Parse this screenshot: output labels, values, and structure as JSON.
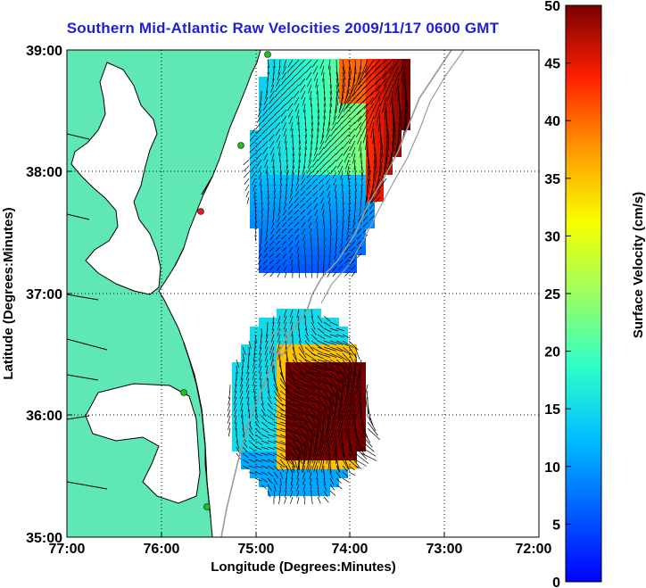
{
  "title": "Southern Mid-Atlantic Raw Velocities 2009/11/17 0600 GMT",
  "map": {
    "xlabel": "Longitude (Degrees:Minutes)",
    "ylabel": "Latitude (Degrees:Minutes)",
    "x_ticks": [
      "77:00",
      "76:00",
      "75:00",
      "74:00",
      "73:00",
      "72:00"
    ],
    "y_ticks": [
      "39:00",
      "38:00",
      "37:00",
      "36:00",
      "35:00"
    ],
    "land_color": "#5fe8b4",
    "water_color": "#ffffff"
  },
  "colorbar": {
    "label": "Surface Velocity (cm/s)",
    "ticks": [
      "50",
      "45",
      "40",
      "35",
      "30",
      "25",
      "20",
      "15",
      "10",
      "5",
      "0"
    ],
    "min": 0,
    "max": 50
  }
}
